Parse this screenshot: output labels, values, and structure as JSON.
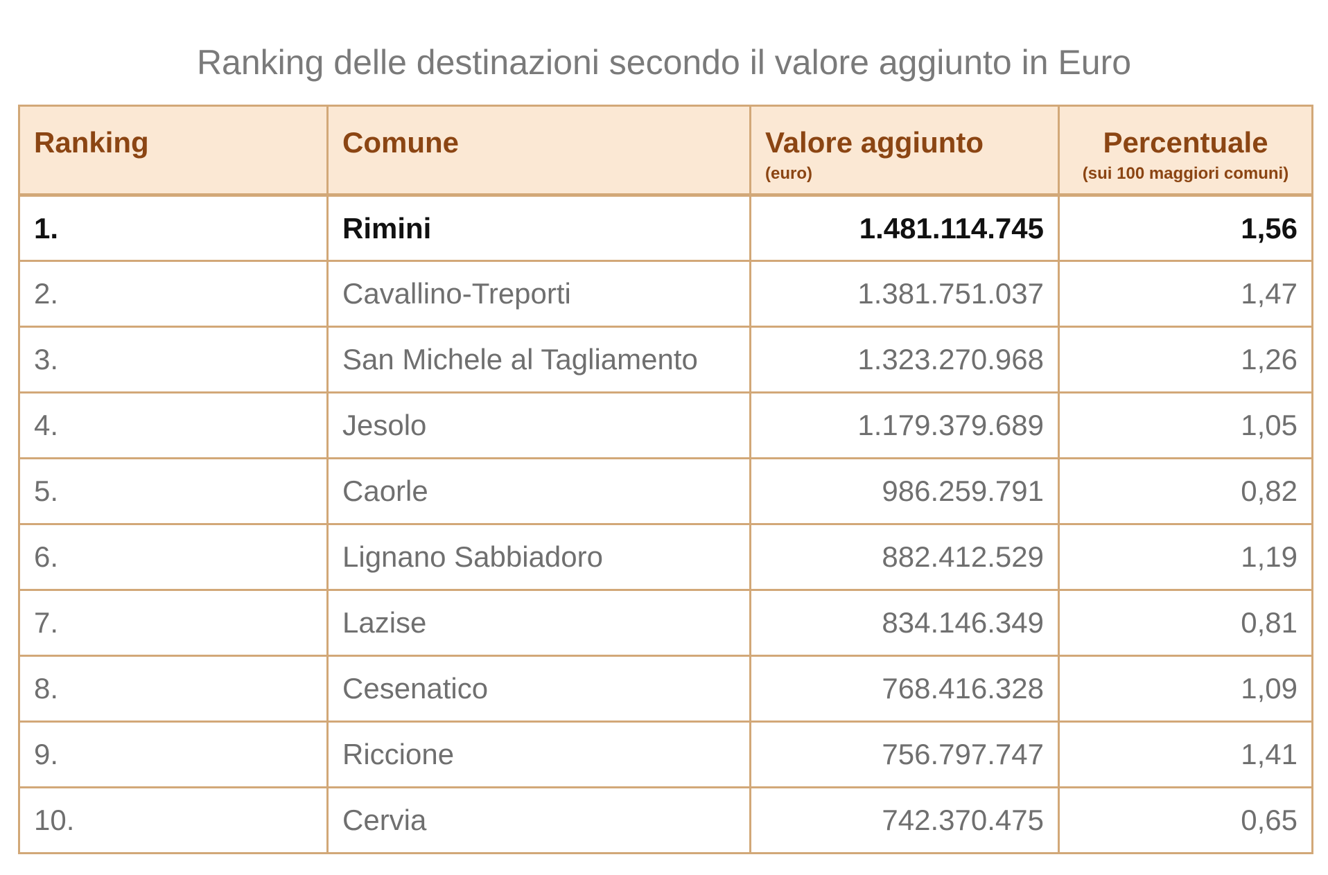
{
  "chart_data": {
    "type": "table",
    "title": "Ranking delle destinazioni secondo il valore aggiunto in Euro",
    "columns": [
      {
        "label": "Ranking",
        "sub": ""
      },
      {
        "label": "Comune",
        "sub": ""
      },
      {
        "label": "Valore aggiunto",
        "sub": "(euro)"
      },
      {
        "label": "Percentuale",
        "sub": "(sui 100 maggiori comuni)"
      }
    ],
    "rows": [
      {
        "rank": "1.",
        "comune": "Rimini",
        "valore": "1.481.114.745",
        "percentuale": "1,56"
      },
      {
        "rank": "2.",
        "comune": "Cavallino-Treporti",
        "valore": "1.381.751.037",
        "percentuale": "1,47"
      },
      {
        "rank": "3.",
        "comune": "San Michele al Tagliamento",
        "valore": "1.323.270.968",
        "percentuale": "1,26"
      },
      {
        "rank": "4.",
        "comune": "Jesolo",
        "valore": "1.179.379.689",
        "percentuale": "1,05"
      },
      {
        "rank": "5.",
        "comune": "Caorle",
        "valore": "986.259.791",
        "percentuale": "0,82"
      },
      {
        "rank": "6.",
        "comune": "Lignano Sabbiadoro",
        "valore": "882.412.529",
        "percentuale": "1,19"
      },
      {
        "rank": "7.",
        "comune": "Lazise",
        "valore": "834.146.349",
        "percentuale": "0,81"
      },
      {
        "rank": "8.",
        "comune": "Cesenatico",
        "valore": "768.416.328",
        "percentuale": "1,09"
      },
      {
        "rank": "9.",
        "comune": "Riccione",
        "valore": "756.797.747",
        "percentuale": "1,41"
      },
      {
        "rank": "10.",
        "comune": "Cervia",
        "valore": "742.370.475",
        "percentuale": "0,65"
      }
    ],
    "colors": {
      "header_background": "#fbe8d4",
      "header_text": "#8b4513",
      "border": "#d2a878",
      "title_text": "#7a7a7a",
      "body_text": "#6f6f6f",
      "highlight_text": "#111111"
    }
  }
}
